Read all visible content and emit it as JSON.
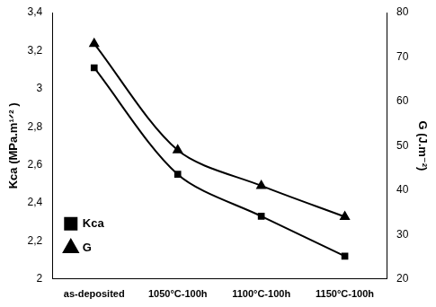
{
  "chart_data": {
    "type": "line",
    "categories": [
      "as-deposited",
      "1050°C-100h",
      "1100°C-100h",
      "1150°C-100h"
    ],
    "y_label": "Kca (MPa.m¹ᐟ² )",
    "y2_label": "G (J.m⁻²)",
    "series": [
      {
        "name": "Kca",
        "color": "#000000",
        "marker": "square",
        "values": [
          3.11,
          2.55,
          2.33,
          2.12
        ]
      },
      {
        "name": "G",
        "color": "#000000",
        "marker": "triangle",
        "axis": "y2",
        "values": [
          73,
          49,
          41,
          34
        ]
      }
    ],
    "ylim": [
      2,
      3.4
    ],
    "yticks": [
      {
        "value": 2,
        "label": "2"
      },
      {
        "value": 2.2,
        "label": "2,2"
      },
      {
        "value": 2.4,
        "label": "2,4"
      },
      {
        "value": 2.6,
        "label": "2,6"
      },
      {
        "value": 2.8,
        "label": "2,8"
      },
      {
        "value": 3,
        "label": "3"
      },
      {
        "value": 3.2,
        "label": "3,2"
      },
      {
        "value": 3.4,
        "label": "3,4"
      }
    ],
    "y2lim": [
      20,
      80
    ],
    "y2ticks": [
      20,
      30,
      40,
      50,
      60,
      70,
      80
    ],
    "grid": false,
    "legend": "upper right"
  }
}
